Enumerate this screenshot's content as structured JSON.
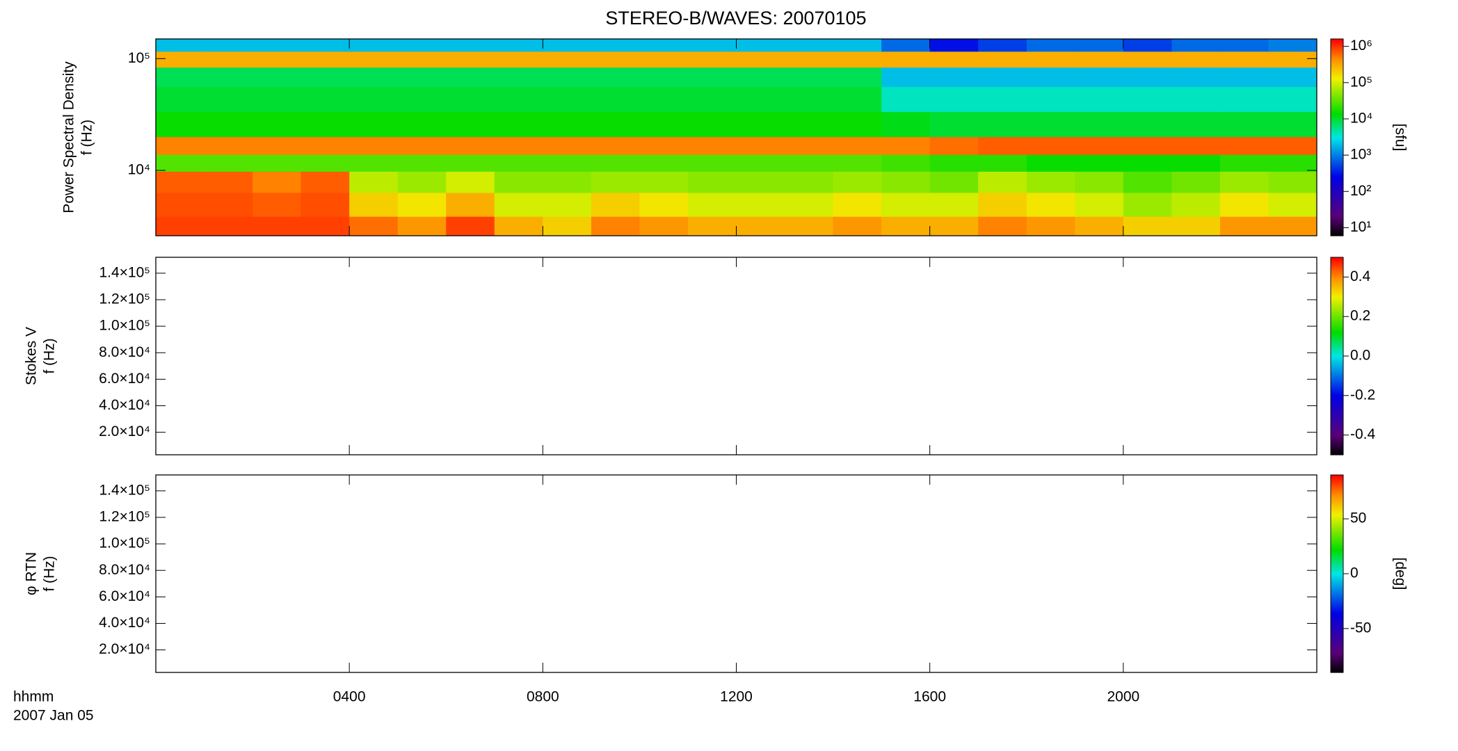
{
  "chart_data": [
    {
      "type": "heatmap",
      "title": "STEREO-B/WAVES: 20070105",
      "ylabel": [
        "Power Spectral Density",
        "f (Hz)"
      ],
      "zlabel": "[sfu]",
      "xlim": [
        0,
        1440
      ],
      "xticks": [
        240,
        480,
        720,
        960,
        1200
      ],
      "ylog": true,
      "ylim": [
        2600,
        150000
      ],
      "yticks": [
        {
          "value": 10000,
          "label": "10⁴"
        },
        {
          "value": 100000,
          "label": "10⁵"
        }
      ],
      "zlog": true,
      "zlim": [
        6,
        1600000
      ],
      "zticks": [
        {
          "value": 10,
          "label": "10¹"
        },
        {
          "value": 100,
          "label": "10²"
        },
        {
          "value": 1000,
          "label": "10³"
        },
        {
          "value": 10000,
          "label": "10⁴"
        },
        {
          "value": 100000,
          "label": "10⁵"
        },
        {
          "value": 1000000,
          "label": "10⁶"
        }
      ],
      "x": [
        0,
        60,
        120,
        180,
        240,
        300,
        360,
        420,
        480,
        540,
        600,
        660,
        720,
        780,
        840,
        900,
        960,
        1020,
        1080,
        1140,
        1200,
        1260,
        1320,
        1380
      ],
      "y": [
        3000,
        5000,
        8000,
        12000,
        16000,
        25000,
        45000,
        70000,
        100000,
        135000
      ],
      "z": [
        [
          900000,
          900000,
          900000,
          900000,
          600000,
          400000,
          900000,
          300000,
          200000,
          500000,
          400000,
          300000,
          300000,
          300000,
          400000,
          300000,
          300000,
          500000,
          400000,
          300000,
          200000,
          200000,
          400000,
          400000
        ],
        [
          800000,
          800000,
          700000,
          800000,
          200000,
          150000,
          300000,
          100000,
          100000,
          200000,
          150000,
          100000,
          100000,
          100000,
          150000,
          100000,
          100000,
          200000,
          150000,
          100000,
          60000,
          80000,
          150000,
          100000
        ],
        [
          700000,
          700000,
          500000,
          700000,
          80000,
          60000,
          100000,
          50000,
          50000,
          60000,
          60000,
          50000,
          50000,
          50000,
          60000,
          50000,
          40000,
          80000,
          60000,
          50000,
          30000,
          40000,
          60000,
          50000
        ],
        [
          30000,
          30000,
          30000,
          30000,
          30000,
          30000,
          30000,
          30000,
          30000,
          30000,
          30000,
          30000,
          30000,
          30000,
          30000,
          25000,
          20000,
          20000,
          15000,
          15000,
          15000,
          15000,
          20000,
          20000
        ],
        [
          500000,
          500000,
          500000,
          500000,
          500000,
          500000,
          500000,
          500000,
          500000,
          500000,
          500000,
          500000,
          500000,
          500000,
          500000,
          500000,
          600000,
          700000,
          700000,
          700000,
          700000,
          700000,
          700000,
          700000
        ],
        [
          15000,
          15000,
          15000,
          15000,
          15000,
          15000,
          15000,
          15000,
          15000,
          15000,
          15000,
          15000,
          15000,
          15000,
          15000,
          12000,
          10000,
          10000,
          10000,
          10000,
          10000,
          10000,
          10000,
          10000
        ],
        [
          10000,
          10000,
          10000,
          10000,
          10000,
          10000,
          10000,
          10000,
          10000,
          10000,
          10000,
          10000,
          10000,
          10000,
          10000,
          4000,
          4000,
          4000,
          4000,
          4000,
          4000,
          4000,
          4000,
          4000
        ],
        [
          8000,
          8000,
          8000,
          8000,
          8000,
          8000,
          8000,
          8000,
          8000,
          8000,
          8000,
          8000,
          8000,
          8000,
          8000,
          2000,
          2000,
          2000,
          2000,
          2000,
          2000,
          2000,
          2000,
          2000
        ],
        [
          300000,
          300000,
          300000,
          300000,
          300000,
          300000,
          300000,
          300000,
          300000,
          300000,
          300000,
          300000,
          300000,
          300000,
          300000,
          300000,
          300000,
          300000,
          300000,
          300000,
          300000,
          300000,
          300000,
          300000
        ],
        [
          2000,
          2000,
          2000,
          2000,
          2000,
          2000,
          2000,
          2000,
          2000,
          2000,
          2000,
          2000,
          2000,
          2000,
          2000,
          800,
          300,
          500,
          800,
          800,
          500,
          800,
          800,
          1000
        ]
      ]
    },
    {
      "type": "heatmap",
      "ylabel": [
        "Stokes V",
        "f (Hz)"
      ],
      "xlim": [
        0,
        1440
      ],
      "xticks": [
        240,
        480,
        720,
        960,
        1200
      ],
      "ylim": [
        3000,
        152000
      ],
      "yticks": [
        {
          "value": 20000,
          "label": "2.0×10⁴"
        },
        {
          "value": 40000,
          "label": "4.0×10⁴"
        },
        {
          "value": 60000,
          "label": "6.0×10⁴"
        },
        {
          "value": 80000,
          "label": "8.0×10⁴"
        },
        {
          "value": 100000,
          "label": "1.0×10⁵"
        },
        {
          "value": 120000,
          "label": "1.2×10⁵"
        },
        {
          "value": 140000,
          "label": "1.4×10⁵"
        }
      ],
      "zlim": [
        -0.5,
        0.5
      ],
      "zticks": [
        -0.4,
        -0.2,
        {
          "value": 0,
          "label": "0.0"
        },
        0.2,
        0.4
      ]
    },
    {
      "type": "heatmap",
      "ylabel": [
        "φ RTN",
        "f (Hz)"
      ],
      "zlabel": "[deg]",
      "xlabel": "hhmm",
      "date": "2007 Jan 05",
      "xlim": [
        0,
        1440
      ],
      "xticks": [
        {
          "value": 240,
          "label": "0400"
        },
        {
          "value": 480,
          "label": "0800"
        },
        {
          "value": 720,
          "label": "1200"
        },
        {
          "value": 960,
          "label": "1600"
        },
        {
          "value": 1200,
          "label": "2000"
        }
      ],
      "ylim": [
        3000,
        152000
      ],
      "yticks": [
        {
          "value": 20000,
          "label": "2.0×10⁴"
        },
        {
          "value": 40000,
          "label": "4.0×10⁴"
        },
        {
          "value": 60000,
          "label": "6.0×10⁴"
        },
        {
          "value": 80000,
          "label": "8.0×10⁴"
        },
        {
          "value": 100000,
          "label": "1.0×10⁵"
        },
        {
          "value": 120000,
          "label": "1.2×10⁵"
        },
        {
          "value": 140000,
          "label": "1.4×10⁵"
        }
      ],
      "zlim": [
        -90,
        90
      ],
      "zticks": [
        -50,
        0,
        50
      ]
    }
  ]
}
